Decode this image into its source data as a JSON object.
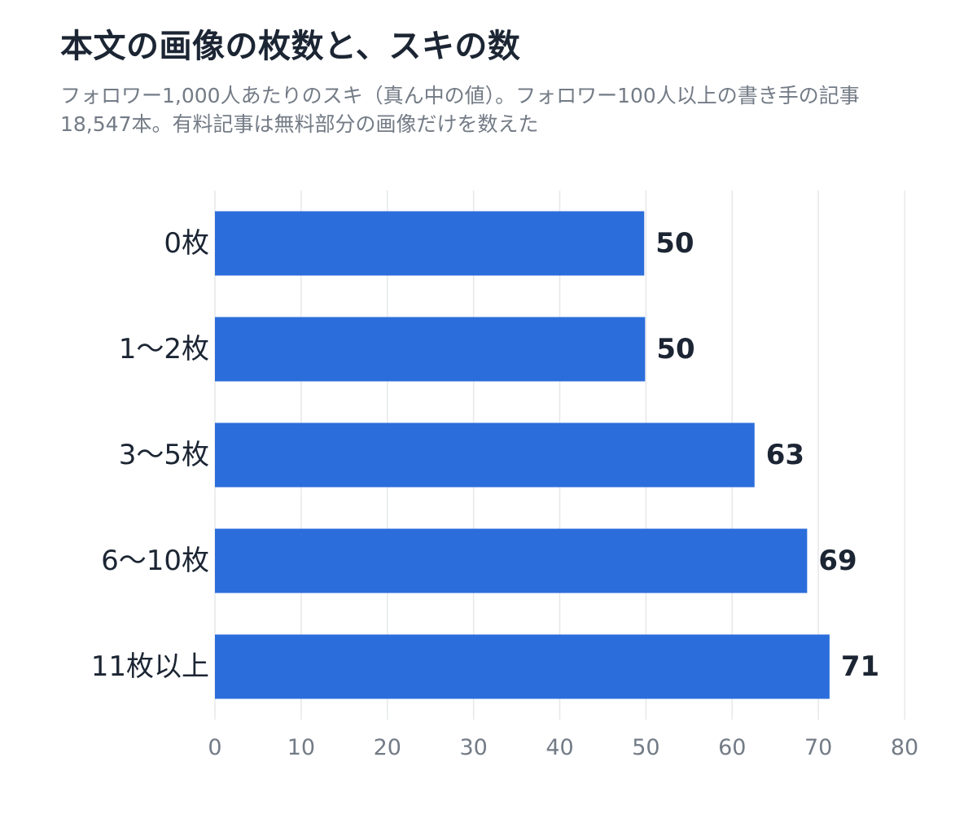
{
  "title": "本文の画像の枚数と、スキの数",
  "subtitle": "フォロワー1,000人あたりのスキ（真ん中の値）。フォロワー100人以上の書き手の記事18,547本。有料記事は無料部分の画像だけを数えた",
  "colors": {
    "bar": "#2b6ddb",
    "text": "#1c2533",
    "muted": "#737b86",
    "grid": "#e6e8ea"
  },
  "chart_data": {
    "type": "bar",
    "orientation": "horizontal",
    "categories": [
      "0枚",
      "1〜2枚",
      "3〜5枚",
      "6〜10枚",
      "11枚以上"
    ],
    "values": [
      49.8,
      49.9,
      62.6,
      68.7,
      71.3
    ],
    "value_labels": [
      "50",
      "50",
      "63",
      "69",
      "71"
    ],
    "xlim": [
      0,
      80
    ],
    "xticks": [
      0,
      10,
      20,
      30,
      40,
      50,
      60,
      70,
      80
    ],
    "grid": "vertical",
    "legend": "none"
  }
}
